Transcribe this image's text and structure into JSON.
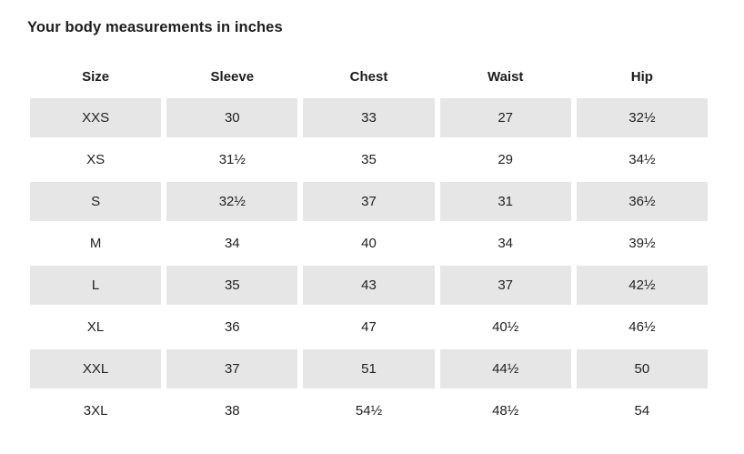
{
  "page": {
    "title": "Your body measurements in inches"
  },
  "colors": {
    "background": "#ffffff",
    "row_stripe": "#e6e6e6",
    "text": "#222222",
    "heading_text": "#1d1d1d"
  },
  "table": {
    "columns": [
      "Size",
      "Sleeve",
      "Chest",
      "Waist",
      "Hip"
    ],
    "rows": [
      {
        "size": "XXS",
        "sleeve": "30",
        "chest": "33",
        "waist": "27",
        "hip": "32½"
      },
      {
        "size": "XS",
        "sleeve": "31½",
        "chest": "35",
        "waist": "29",
        "hip": "34½"
      },
      {
        "size": "S",
        "sleeve": "32½",
        "chest": "37",
        "waist": "31",
        "hip": "36½"
      },
      {
        "size": "M",
        "sleeve": "34",
        "chest": "40",
        "waist": "34",
        "hip": "39½"
      },
      {
        "size": "L",
        "sleeve": "35",
        "chest": "43",
        "waist": "37",
        "hip": "42½"
      },
      {
        "size": "XL",
        "sleeve": "36",
        "chest": "47",
        "waist": "40½",
        "hip": "46½"
      },
      {
        "size": "XXL",
        "sleeve": "37",
        "chest": "51",
        "waist": "44½",
        "hip": "50"
      },
      {
        "size": "3XL",
        "sleeve": "38",
        "chest": "54½",
        "waist": "48½",
        "hip": "54"
      }
    ]
  }
}
